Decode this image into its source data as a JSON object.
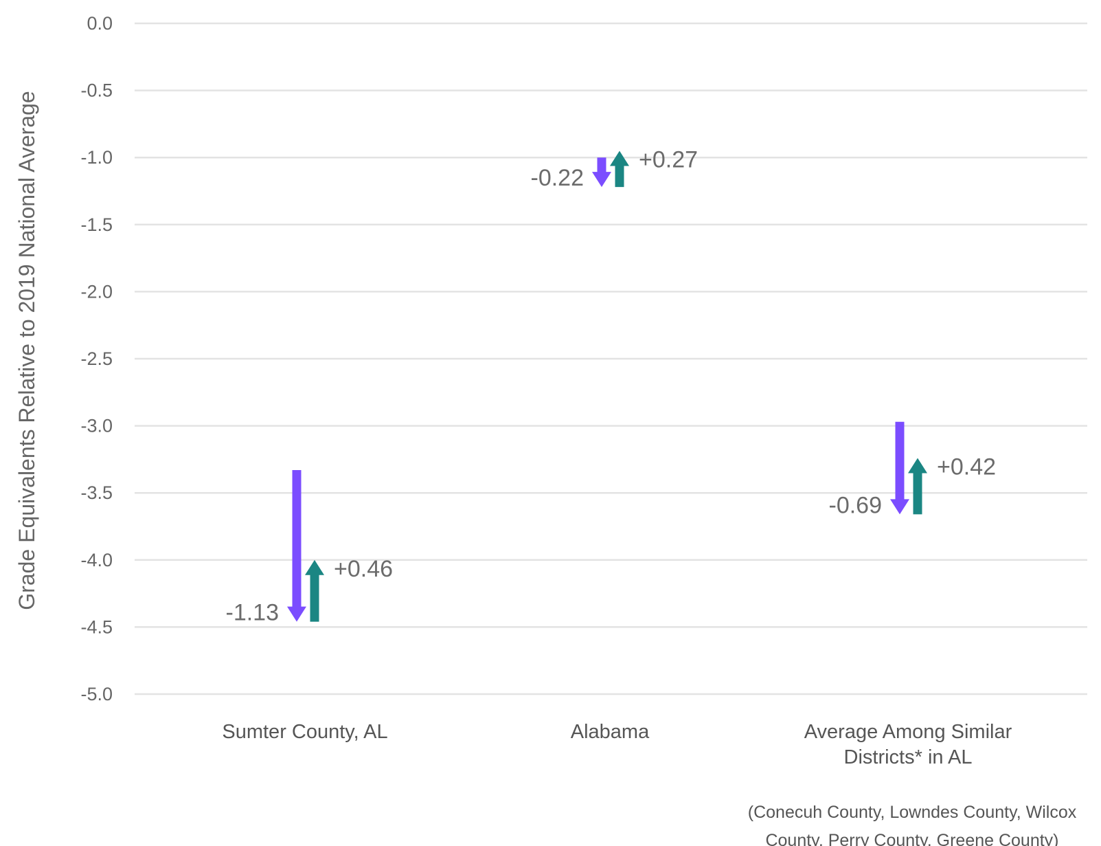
{
  "chart_data": {
    "type": "bar",
    "ylabel": "Grade Equivalents Relative to 2019 National Average",
    "ylim": [
      -5.0,
      0.0
    ],
    "yticks": [
      "0.0",
      "-0.5",
      "-1.0",
      "-1.5",
      "-2.0",
      "-2.5",
      "-3.0",
      "-3.5",
      "-4.0",
      "-4.5",
      "-5.0"
    ],
    "grid": true,
    "categories": [
      [
        "Sumter County, AL"
      ],
      [
        "Alabama"
      ],
      [
        "Average Among Similar",
        "Districts* in AL"
      ]
    ],
    "series": [
      {
        "color": "#7b4dff",
        "direction": "down",
        "starts": [
          -3.33,
          -1.0,
          -2.97
        ],
        "ends": [
          -4.46,
          -1.22,
          -3.66
        ],
        "labels": [
          "-1.13",
          "-0.22",
          "-0.69"
        ]
      },
      {
        "color": "#1b8683",
        "direction": "up",
        "starts": [
          -4.46,
          -1.22,
          -3.66
        ],
        "ends": [
          -4.0,
          -0.95,
          -3.24
        ],
        "labels": [
          "+0.46",
          "+0.27",
          "+0.42"
        ]
      }
    ],
    "footnote": [
      "(Conecuh County, Lowndes County, Wilcox",
      "County, Perry County, Greene County)"
    ]
  }
}
